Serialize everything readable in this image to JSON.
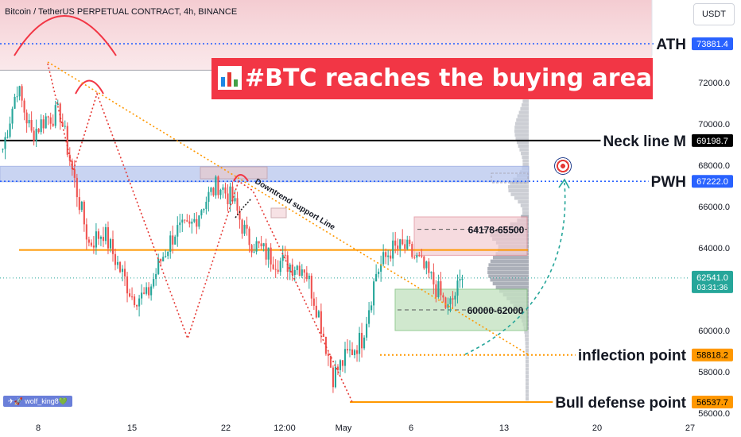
{
  "header": {
    "symbol_title": "Bitcoin / TetherUS PERPETUAL CONTRACT, 4h, BINANCE",
    "currency_button": "USDT"
  },
  "headline": {
    "text": "#BTC reaches the buying area",
    "check": "✔"
  },
  "watermark": {
    "text": "✈🚀 wolf_king8💚"
  },
  "colors": {
    "up": "#26a69a",
    "down": "#ef5350",
    "accent_blue": "#2962ff",
    "orange": "#ff9800",
    "headline_bg": "#f23645"
  },
  "chart_data": {
    "type": "candlestick",
    "timeframe": "4h",
    "ylim": [
      56000,
      74200
    ],
    "y_ticks": [
      56000,
      58000,
      60000,
      62000,
      64000,
      66000,
      68000,
      70000,
      72000
    ],
    "x_ticks": [
      "8",
      "15",
      "22",
      "12:00",
      "May",
      "6",
      "13",
      "20",
      "27"
    ],
    "grid": false,
    "price_path": {
      "x": [
        "Apr 7",
        "Apr 8",
        "Apr 9",
        "Apr 10",
        "Apr 11",
        "Apr 12",
        "Apr 13",
        "Apr 14",
        "Apr 15",
        "Apr 16",
        "Apr 17",
        "Apr 18",
        "Apr 19",
        "Apr 20",
        "Apr 21",
        "Apr 22",
        "Apr 23",
        "Apr 24",
        "Apr 25",
        "Apr 26",
        "Apr 27",
        "Apr 28",
        "Apr 29",
        "Apr 30",
        "May 1",
        "May 2",
        "May 3",
        "May 4",
        "May 5",
        "May 6",
        "May 7",
        "May 8",
        "May 9"
      ],
      "close": [
        68800,
        71800,
        69500,
        70300,
        70500,
        67200,
        64200,
        64800,
        63200,
        61700,
        61600,
        63400,
        64800,
        64900,
        66200,
        67100,
        66300,
        64500,
        63900,
        63400,
        63200,
        63100,
        60800,
        57800,
        58800,
        59600,
        62800,
        63900,
        64000,
        63300,
        62300,
        61000,
        62500
      ]
    },
    "levels": [
      {
        "name": "ATH",
        "price": 73881.4
      },
      {
        "name": "Neck line M",
        "price": 69198.7
      },
      {
        "name": "PWH",
        "price": 67222.0
      },
      {
        "name": "inflection point",
        "price": 58818.2
      },
      {
        "name": "Bull defense point",
        "price": 56537.7
      }
    ],
    "orange_line": 63900,
    "zones": [
      {
        "label": "64178-65500",
        "low": 64178,
        "high": 65500
      },
      {
        "label": "60000-62000",
        "low": 60000,
        "high": 62000
      }
    ],
    "blue_zone": [
      67200,
      67950
    ],
    "trend_annotation": "Downtrend support Line",
    "current_price": {
      "value": "62541.0",
      "countdown": "03:31:36"
    }
  }
}
